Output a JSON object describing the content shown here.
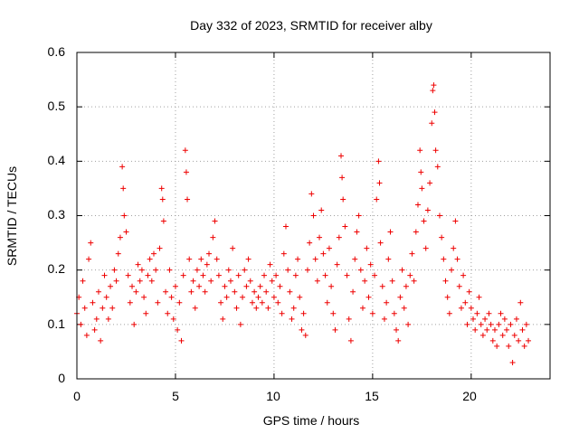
{
  "chart_data": {
    "type": "scatter",
    "title": "Day 332 of 2023, SRMTID for receiver alby",
    "xlabel": "GPS time / hours",
    "ylabel": "SRMTID / TECUs",
    "xlim": [
      0,
      24
    ],
    "ylim": [
      0,
      0.6
    ],
    "x_ticks": [
      "0",
      "5",
      "10",
      "15",
      "20"
    ],
    "y_ticks": [
      "0",
      "0.1",
      "0.2",
      "0.3",
      "0.4",
      "0.5",
      "0.6"
    ],
    "grid": true,
    "marker": "+",
    "color": "#ee0000",
    "series": [
      {
        "name": "SRMTID",
        "points": [
          [
            0.0,
            0.12
          ],
          [
            0.1,
            0.15
          ],
          [
            0.2,
            0.1
          ],
          [
            0.3,
            0.18
          ],
          [
            0.4,
            0.13
          ],
          [
            0.5,
            0.08
          ],
          [
            0.6,
            0.22
          ],
          [
            0.7,
            0.25
          ],
          [
            0.8,
            0.14
          ],
          [
            0.9,
            0.09
          ],
          [
            1.0,
            0.11
          ],
          [
            1.1,
            0.16
          ],
          [
            1.2,
            0.07
          ],
          [
            1.3,
            0.13
          ],
          [
            1.4,
            0.19
          ],
          [
            1.5,
            0.15
          ],
          [
            1.6,
            0.11
          ],
          [
            1.7,
            0.17
          ],
          [
            1.8,
            0.13
          ],
          [
            1.9,
            0.2
          ],
          [
            2.0,
            0.18
          ],
          [
            2.1,
            0.23
          ],
          [
            2.2,
            0.26
          ],
          [
            2.3,
            0.39
          ],
          [
            2.35,
            0.35
          ],
          [
            2.4,
            0.3
          ],
          [
            2.5,
            0.27
          ],
          [
            2.6,
            0.19
          ],
          [
            2.7,
            0.14
          ],
          [
            2.8,
            0.17
          ],
          [
            2.9,
            0.1
          ],
          [
            3.0,
            0.16
          ],
          [
            3.1,
            0.21
          ],
          [
            3.2,
            0.18
          ],
          [
            3.3,
            0.2
          ],
          [
            3.4,
            0.15
          ],
          [
            3.5,
            0.12
          ],
          [
            3.6,
            0.19
          ],
          [
            3.7,
            0.22
          ],
          [
            3.8,
            0.18
          ],
          [
            3.9,
            0.23
          ],
          [
            4.0,
            0.2
          ],
          [
            4.1,
            0.14
          ],
          [
            4.2,
            0.24
          ],
          [
            4.3,
            0.35
          ],
          [
            4.35,
            0.33
          ],
          [
            4.4,
            0.29
          ],
          [
            4.5,
            0.16
          ],
          [
            4.6,
            0.12
          ],
          [
            4.7,
            0.2
          ],
          [
            4.8,
            0.15
          ],
          [
            4.9,
            0.11
          ],
          [
            5.0,
            0.17
          ],
          [
            5.1,
            0.09
          ],
          [
            5.2,
            0.14
          ],
          [
            5.3,
            0.07
          ],
          [
            5.4,
            0.19
          ],
          [
            5.5,
            0.42
          ],
          [
            5.55,
            0.38
          ],
          [
            5.6,
            0.33
          ],
          [
            5.7,
            0.22
          ],
          [
            5.8,
            0.16
          ],
          [
            5.9,
            0.18
          ],
          [
            6.0,
            0.13
          ],
          [
            6.1,
            0.2
          ],
          [
            6.2,
            0.17
          ],
          [
            6.3,
            0.22
          ],
          [
            6.4,
            0.19
          ],
          [
            6.5,
            0.16
          ],
          [
            6.6,
            0.21
          ],
          [
            6.7,
            0.23
          ],
          [
            6.8,
            0.18
          ],
          [
            6.9,
            0.26
          ],
          [
            7.0,
            0.29
          ],
          [
            7.1,
            0.22
          ],
          [
            7.2,
            0.19
          ],
          [
            7.3,
            0.14
          ],
          [
            7.4,
            0.11
          ],
          [
            7.5,
            0.17
          ],
          [
            7.6,
            0.15
          ],
          [
            7.7,
            0.2
          ],
          [
            7.8,
            0.18
          ],
          [
            7.9,
            0.24
          ],
          [
            8.0,
            0.16
          ],
          [
            8.1,
            0.13
          ],
          [
            8.2,
            0.19
          ],
          [
            8.3,
            0.1
          ],
          [
            8.4,
            0.15
          ],
          [
            8.5,
            0.2
          ],
          [
            8.6,
            0.17
          ],
          [
            8.7,
            0.22
          ],
          [
            8.8,
            0.18
          ],
          [
            8.9,
            0.14
          ],
          [
            9.0,
            0.16
          ],
          [
            9.1,
            0.13
          ],
          [
            9.2,
            0.15
          ],
          [
            9.3,
            0.17
          ],
          [
            9.4,
            0.14
          ],
          [
            9.5,
            0.19
          ],
          [
            9.6,
            0.16
          ],
          [
            9.7,
            0.13
          ],
          [
            9.8,
            0.21
          ],
          [
            9.9,
            0.18
          ],
          [
            10.0,
            0.15
          ],
          [
            10.1,
            0.19
          ],
          [
            10.2,
            0.14
          ],
          [
            10.3,
            0.17
          ],
          [
            10.4,
            0.12
          ],
          [
            10.5,
            0.23
          ],
          [
            10.6,
            0.28
          ],
          [
            10.7,
            0.2
          ],
          [
            10.8,
            0.16
          ],
          [
            10.9,
            0.11
          ],
          [
            11.0,
            0.13
          ],
          [
            11.1,
            0.19
          ],
          [
            11.2,
            0.22
          ],
          [
            11.3,
            0.15
          ],
          [
            11.4,
            0.09
          ],
          [
            11.5,
            0.12
          ],
          [
            11.6,
            0.08
          ],
          [
            11.7,
            0.2
          ],
          [
            11.8,
            0.25
          ],
          [
            11.9,
            0.34
          ],
          [
            12.0,
            0.3
          ],
          [
            12.1,
            0.22
          ],
          [
            12.2,
            0.18
          ],
          [
            12.3,
            0.26
          ],
          [
            12.4,
            0.31
          ],
          [
            12.5,
            0.23
          ],
          [
            12.6,
            0.19
          ],
          [
            12.7,
            0.14
          ],
          [
            12.8,
            0.24
          ],
          [
            12.9,
            0.17
          ],
          [
            13.0,
            0.12
          ],
          [
            13.1,
            0.09
          ],
          [
            13.2,
            0.21
          ],
          [
            13.3,
            0.26
          ],
          [
            13.4,
            0.41
          ],
          [
            13.45,
            0.37
          ],
          [
            13.5,
            0.33
          ],
          [
            13.6,
            0.28
          ],
          [
            13.7,
            0.19
          ],
          [
            13.8,
            0.11
          ],
          [
            13.9,
            0.07
          ],
          [
            14.0,
            0.16
          ],
          [
            14.1,
            0.22
          ],
          [
            14.2,
            0.27
          ],
          [
            14.3,
            0.3
          ],
          [
            14.4,
            0.2
          ],
          [
            14.5,
            0.13
          ],
          [
            14.6,
            0.18
          ],
          [
            14.7,
            0.24
          ],
          [
            14.8,
            0.15
          ],
          [
            14.9,
            0.21
          ],
          [
            15.0,
            0.12
          ],
          [
            15.1,
            0.19
          ],
          [
            15.2,
            0.33
          ],
          [
            15.3,
            0.4
          ],
          [
            15.35,
            0.36
          ],
          [
            15.4,
            0.25
          ],
          [
            15.5,
            0.17
          ],
          [
            15.6,
            0.11
          ],
          [
            15.7,
            0.14
          ],
          [
            15.8,
            0.22
          ],
          [
            15.9,
            0.27
          ],
          [
            16.0,
            0.18
          ],
          [
            16.1,
            0.12
          ],
          [
            16.2,
            0.09
          ],
          [
            16.3,
            0.07
          ],
          [
            16.4,
            0.15
          ],
          [
            16.5,
            0.2
          ],
          [
            16.6,
            0.13
          ],
          [
            16.7,
            0.17
          ],
          [
            16.8,
            0.1
          ],
          [
            16.9,
            0.19
          ],
          [
            17.0,
            0.23
          ],
          [
            17.1,
            0.18
          ],
          [
            17.2,
            0.27
          ],
          [
            17.3,
            0.32
          ],
          [
            17.4,
            0.42
          ],
          [
            17.45,
            0.38
          ],
          [
            17.5,
            0.35
          ],
          [
            17.6,
            0.29
          ],
          [
            17.7,
            0.24
          ],
          [
            17.8,
            0.31
          ],
          [
            17.9,
            0.36
          ],
          [
            18.0,
            0.47
          ],
          [
            18.05,
            0.53
          ],
          [
            18.1,
            0.54
          ],
          [
            18.15,
            0.49
          ],
          [
            18.2,
            0.42
          ],
          [
            18.3,
            0.39
          ],
          [
            18.4,
            0.3
          ],
          [
            18.5,
            0.26
          ],
          [
            18.6,
            0.22
          ],
          [
            18.7,
            0.18
          ],
          [
            18.8,
            0.15
          ],
          [
            18.9,
            0.12
          ],
          [
            19.0,
            0.2
          ],
          [
            19.1,
            0.24
          ],
          [
            19.2,
            0.29
          ],
          [
            19.3,
            0.22
          ],
          [
            19.4,
            0.17
          ],
          [
            19.5,
            0.13
          ],
          [
            19.6,
            0.19
          ],
          [
            19.7,
            0.14
          ],
          [
            19.8,
            0.1
          ],
          [
            19.9,
            0.16
          ],
          [
            20.0,
            0.13
          ],
          [
            20.1,
            0.11
          ],
          [
            20.2,
            0.09
          ],
          [
            20.3,
            0.12
          ],
          [
            20.4,
            0.15
          ],
          [
            20.5,
            0.1
          ],
          [
            20.6,
            0.08
          ],
          [
            20.7,
            0.11
          ],
          [
            20.8,
            0.09
          ],
          [
            20.9,
            0.12
          ],
          [
            21.0,
            0.1
          ],
          [
            21.1,
            0.07
          ],
          [
            21.2,
            0.09
          ],
          [
            21.3,
            0.06
          ],
          [
            21.4,
            0.1
          ],
          [
            21.5,
            0.12
          ],
          [
            21.6,
            0.08
          ],
          [
            21.7,
            0.11
          ],
          [
            21.8,
            0.09
          ],
          [
            21.9,
            0.06
          ],
          [
            22.0,
            0.1
          ],
          [
            22.1,
            0.03
          ],
          [
            22.2,
            0.08
          ],
          [
            22.3,
            0.11
          ],
          [
            22.4,
            0.07
          ],
          [
            22.5,
            0.14
          ],
          [
            22.6,
            0.09
          ],
          [
            22.7,
            0.06
          ],
          [
            22.8,
            0.1
          ],
          [
            22.9,
            0.07
          ]
        ]
      }
    ]
  }
}
